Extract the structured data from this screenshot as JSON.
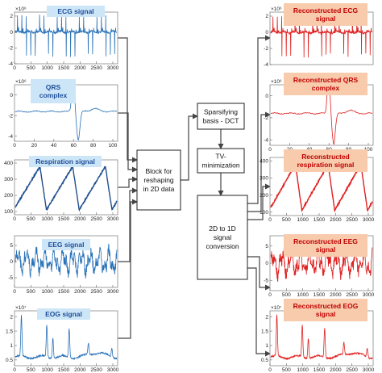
{
  "left_panels": [
    {
      "title": "ECG signal",
      "title_lines": [
        "ECG signal"
      ],
      "exp": "×10⁶",
      "y_ticks": [
        "2",
        "0",
        "-2",
        "-4"
      ],
      "x_ticks": [
        "0",
        "500",
        "1000",
        "1500",
        "2000",
        "2500",
        "3000"
      ],
      "ylim": [
        -4,
        2.5
      ],
      "shape": "ecg",
      "line_color": "#2a72b8"
    },
    {
      "title": "QRS complex",
      "title_lines": [
        "QRS",
        "complex"
      ],
      "exp": "×10⁶",
      "y_ticks": [
        "0",
        "-2",
        "-4"
      ],
      "x_ticks": [
        "0",
        "20",
        "40",
        "60",
        "80",
        "100"
      ],
      "ylim": [
        -4.5,
        1
      ],
      "shape": "qrs",
      "line_color": "#2a72b8"
    },
    {
      "title": "Respiration signal",
      "title_lines": [
        "Respiration signal"
      ],
      "exp": "",
      "y_ticks": [
        "400",
        "300",
        "200",
        "100"
      ],
      "x_ticks": [
        "0",
        "500",
        "1000",
        "1500",
        "2000",
        "2500",
        "3000"
      ],
      "ylim": [
        80,
        420
      ],
      "shape": "resp",
      "line_color": "#1f4f8f"
    },
    {
      "title": "EEG signal",
      "title_lines": [
        "EEG signal"
      ],
      "exp": "",
      "y_ticks": [
        "5",
        "0",
        "-5"
      ],
      "x_ticks": [
        "0",
        "500",
        "1000",
        "1500",
        "2000",
        "2500",
        "3000"
      ],
      "ylim": [
        -8,
        8
      ],
      "shape": "eeg",
      "line_color": "#2a72b8"
    },
    {
      "title": "EOG signal",
      "title_lines": [
        "EOG signal"
      ],
      "exp": "×10⁷",
      "y_ticks": [
        "2",
        "1.5",
        "1",
        "0.5"
      ],
      "x_ticks": [
        "0",
        "500",
        "1000",
        "1500",
        "2000",
        "2500",
        "3000"
      ],
      "ylim": [
        0.3,
        2.2
      ],
      "shape": "eog",
      "line_color": "#2a72b8"
    }
  ],
  "right_panels": [
    {
      "title": "Reconstructed ECG signal",
      "title_lines": [
        "Reconstructed ECG",
        "signal"
      ],
      "exp": "×10⁶",
      "y_ticks": [
        "2",
        "0",
        "-2",
        "-4"
      ],
      "x_ticks": [],
      "ylim": [
        -4,
        2.5
      ],
      "shape": "ecg",
      "line_color": "#e02020"
    },
    {
      "title": "Reconstructed QRS complex",
      "title_lines": [
        "Reconstructed QRS",
        "complex"
      ],
      "exp": "×10⁶",
      "y_ticks": [
        "0",
        "-2",
        "-4"
      ],
      "x_ticks": [
        "0",
        "20",
        "40",
        "60",
        "80",
        "100"
      ],
      "ylim": [
        -4.5,
        1
      ],
      "shape": "qrs",
      "line_color": "#e02020"
    },
    {
      "title": "Reconstructed respiration signal",
      "title_lines": [
        "Reconstructed",
        "respiration signal"
      ],
      "exp": "",
      "y_ticks": [
        "400",
        "300",
        "200",
        "100"
      ],
      "x_ticks": [
        "0",
        "500",
        "1000",
        "1500",
        "2000",
        "2500",
        "3000"
      ],
      "ylim": [
        80,
        420
      ],
      "shape": "resp",
      "line_color": "#e02020"
    },
    {
      "title": "Reconstructed EEG signal",
      "title_lines": [
        "Reconstructed EEG",
        "signal"
      ],
      "exp": "",
      "y_ticks": [
        "5",
        "0",
        "-5"
      ],
      "x_ticks": [
        "0",
        "500",
        "1000",
        "1500",
        "2000",
        "2500",
        "3000"
      ],
      "ylim": [
        -8,
        8
      ],
      "shape": "eeg",
      "line_color": "#e02020"
    },
    {
      "title": "Reconstructed EOG signal",
      "title_lines": [
        "Reconstructed EOG",
        "signal"
      ],
      "exp": "×10⁷",
      "y_ticks": [
        "2",
        "1.5",
        "1",
        "0.5"
      ],
      "x_ticks": [
        "0",
        "500",
        "1000",
        "1500",
        "2000",
        "2500",
        "3000"
      ],
      "ylim": [
        0.3,
        2.2
      ],
      "shape": "eog",
      "line_color": "#e02020"
    }
  ],
  "blocks": {
    "reshape": [
      "Block for",
      "reshaping",
      "in 2D data"
    ],
    "sparsify": [
      "Sparsifying",
      "basis - DCT"
    ],
    "tv": [
      "TV-",
      "minimization"
    ],
    "convert": [
      "2D to 1D",
      "signal",
      "conversion"
    ]
  },
  "colors": {
    "left_label_bg": "#cde6f7",
    "right_label_bg": "#f8cbad",
    "left_label_text": "#1f4e9a",
    "right_label_text": "#c00000",
    "arrow": "#444444"
  }
}
